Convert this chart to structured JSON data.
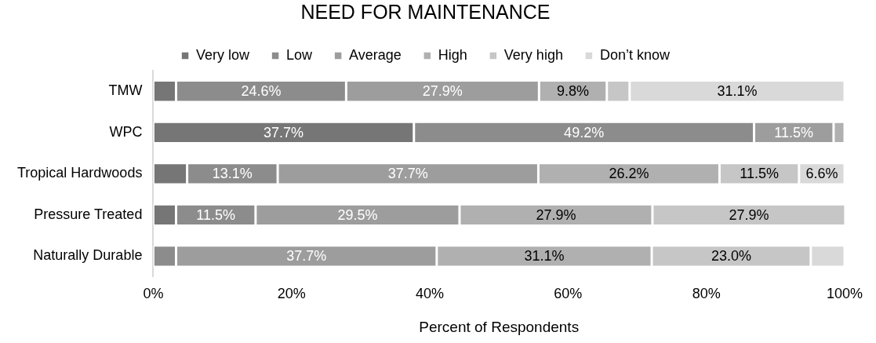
{
  "chart_data": {
    "type": "bar",
    "orientation": "horizontal",
    "stacked": true,
    "title": "NEED FOR MAINTENANCE",
    "xlabel": "Percent of Respondents",
    "categories": [
      "TMW",
      "WPC",
      "Tropical Hardwoods",
      "Pressure Treated",
      "Naturally Durable"
    ],
    "xlim": [
      0,
      100
    ],
    "xticks": [
      {
        "value": 0,
        "label": "0%"
      },
      {
        "value": 20,
        "label": "20%"
      },
      {
        "value": 40,
        "label": "40%"
      },
      {
        "value": 60,
        "label": "60%"
      },
      {
        "value": 80,
        "label": "80%"
      },
      {
        "value": 100,
        "label": "100%"
      }
    ],
    "grid": false,
    "legend": "top",
    "series": [
      {
        "name": "Very low",
        "color": "#767676",
        "values": [
          3.3,
          37.7,
          4.9,
          3.3,
          null
        ],
        "value_labels": [
          null,
          "37.7%",
          null,
          null,
          null
        ]
      },
      {
        "name": "Low",
        "color": "#8c8c8c",
        "values": [
          24.6,
          49.2,
          13.1,
          11.5,
          3.3
        ],
        "value_labels": [
          "24.6%",
          "49.2%",
          "13.1%",
          "11.5%",
          null
        ]
      },
      {
        "name": "Average",
        "color": "#9d9d9d",
        "values": [
          27.9,
          11.5,
          37.7,
          29.5,
          37.7
        ],
        "value_labels": [
          "27.9%",
          "11.5%",
          "37.7%",
          "29.5%",
          "37.7%"
        ]
      },
      {
        "name": "High",
        "color": "#b0b0b0",
        "values": [
          9.8,
          1.6,
          26.2,
          27.9,
          31.1
        ],
        "value_labels": [
          "9.8%",
          null,
          "26.2%",
          "27.9%",
          "31.1%"
        ]
      },
      {
        "name": "Very high",
        "color": "#c6c6c6",
        "values": [
          3.3,
          null,
          11.5,
          27.9,
          23.0
        ],
        "value_labels": [
          null,
          null,
          "11.5%",
          "27.9%",
          "23.0%"
        ]
      },
      {
        "name": "Don’t know",
        "color": "#d9d9d9",
        "values": [
          31.1,
          null,
          6.6,
          null,
          4.9
        ],
        "value_labels": [
          "31.1%",
          null,
          "6.6%",
          null,
          null
        ]
      }
    ]
  }
}
